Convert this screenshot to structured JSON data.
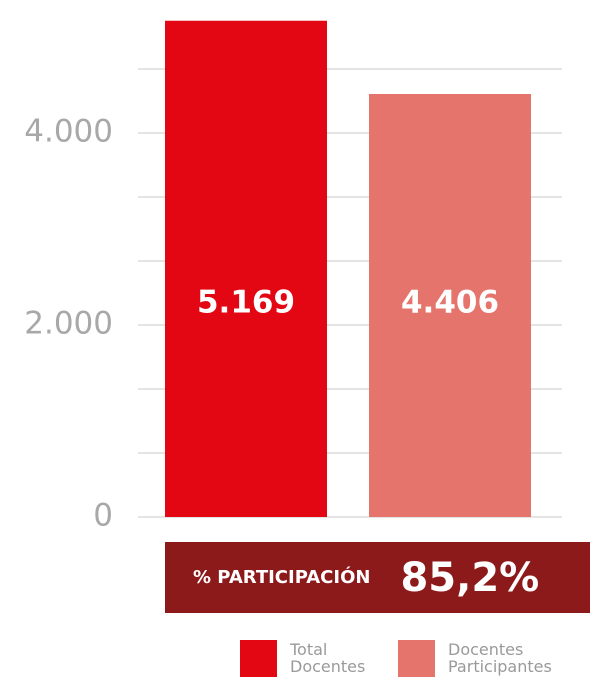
{
  "chart_data": {
    "type": "bar",
    "categories": [
      "Total Docentes",
      "Docentes Participantes"
    ],
    "values": [
      5169,
      4406
    ],
    "value_labels": [
      "5.169",
      "4.406"
    ],
    "colors": [
      "#e30613",
      "#e5756c"
    ],
    "ylim": [
      0,
      5385
    ],
    "yticks": [
      0,
      {
        "value": 2000,
        "label": "2.000"
      },
      {
        "value": 4000,
        "label": "4.000"
      }
    ],
    "minor_yticks": [
      666.67,
      1333.33,
      2666.67,
      3333.33,
      4666.67
    ],
    "grid": true,
    "legend": "bottom-right",
    "annotation": {
      "label": "% PARTICIPACIÓN",
      "value": "85,2%"
    }
  }
}
